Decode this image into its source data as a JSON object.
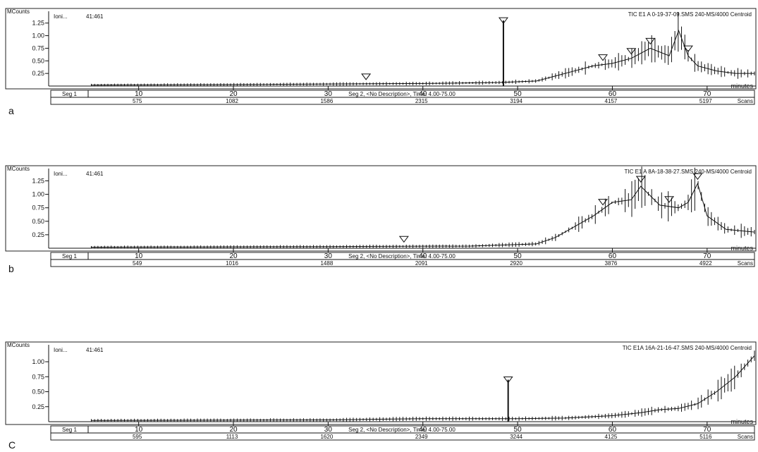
{
  "chart_data": [
    {
      "type": "line",
      "panel_label": "a",
      "title": "TIC E1 A 0-19-37-09.SMS 240-MS/4000 Centroid",
      "ion_label": "Ioni...",
      "ion_value": "41:461",
      "ylabel": "MCounts",
      "yticks": [
        "0.25",
        "0.50",
        "0.75",
        "1.00",
        "1.25"
      ],
      "ylim": [
        0,
        1.4
      ],
      "xlabel": "minutes",
      "xticks": [
        10,
        20,
        30,
        40,
        50,
        60,
        70
      ],
      "xlim": [
        0.5,
        75
      ],
      "seg1_label": "Seg 1",
      "seg2_label": "Seg 2, <No Description>, Time:  4.00-75.00",
      "scans": [
        "575",
        "1082",
        "1586",
        "2315",
        "3194",
        "4157",
        "5197"
      ],
      "scans_label": "Scans",
      "x": [
        5,
        20,
        40,
        48,
        52,
        54,
        56,
        58,
        60,
        62,
        64,
        66,
        67,
        68,
        69,
        71,
        73,
        75
      ],
      "y": [
        0.02,
        0.03,
        0.05,
        0.07,
        0.1,
        0.2,
        0.3,
        0.4,
        0.45,
        0.55,
        0.75,
        0.6,
        1.1,
        0.6,
        0.4,
        0.3,
        0.25,
        0.25
      ],
      "peaks": [
        {
          "x": 48.5,
          "y": 1.3
        }
      ],
      "markers_x": [
        34,
        48.5,
        59,
        62,
        64,
        68
      ]
    },
    {
      "type": "line",
      "panel_label": "b",
      "title": "TIC E1 A 8A-18-38-27.SMS 240-MS/4000 Centroid",
      "ion_label": "Ioni...",
      "ion_value": "41:461",
      "ylabel": "MCounts",
      "yticks": [
        "0.25",
        "0.50",
        "0.75",
        "1.00",
        "1.25"
      ],
      "ylim": [
        0,
        1.4
      ],
      "xlabel": "minutes",
      "xticks": [
        10,
        20,
        30,
        40,
        50,
        60,
        70
      ],
      "xlim": [
        0.5,
        75
      ],
      "seg1_label": "Seg 1",
      "seg2_label": "Seg 2, <No Description>, Time:  4.00-75.00",
      "scans": [
        "549",
        "1016",
        "1488",
        "2091",
        "2920",
        "3876",
        "4922"
      ],
      "scans_label": "Scans",
      "x": [
        5,
        30,
        45,
        52,
        54,
        56,
        58,
        60,
        62,
        63,
        65,
        67,
        68,
        69,
        70,
        72,
        75
      ],
      "y": [
        0.02,
        0.03,
        0.04,
        0.08,
        0.2,
        0.4,
        0.6,
        0.85,
        0.9,
        1.15,
        0.8,
        0.75,
        0.85,
        1.2,
        0.6,
        0.35,
        0.3
      ],
      "peaks": [],
      "markers_x": [
        38,
        59,
        63,
        66,
        69
      ]
    },
    {
      "type": "line",
      "panel_label": "C",
      "title": "TIC E1A 16A-21-16-47.SMS 240-MS/4000 Centroid",
      "ion_label": "Ioni...",
      "ion_value": "41:461",
      "ylabel": "MCounts",
      "yticks": [
        "0.25",
        "0.50",
        "0.75",
        "1.00"
      ],
      "ylim": [
        0,
        1.2
      ],
      "xlabel": "minutes",
      "xticks": [
        10,
        20,
        30,
        40,
        50,
        60,
        70
      ],
      "xlim": [
        0.5,
        75
      ],
      "seg1_label": "Seg 1",
      "seg2_label": "Seg 2, <No Description>, Time:  4.00-75.00",
      "scans": [
        "595",
        "1113",
        "1620",
        "2349",
        "3244",
        "4125",
        "5116"
      ],
      "scans_label": "Scans",
      "x": [
        5,
        30,
        40,
        50,
        55,
        60,
        63,
        65,
        67,
        69,
        71,
        73,
        75
      ],
      "y": [
        0.02,
        0.03,
        0.05,
        0.05,
        0.06,
        0.1,
        0.15,
        0.2,
        0.22,
        0.3,
        0.5,
        0.75,
        1.1
      ],
      "peaks": [
        {
          "x": 49,
          "y": 0.7
        }
      ],
      "markers_x": [
        49
      ]
    }
  ]
}
